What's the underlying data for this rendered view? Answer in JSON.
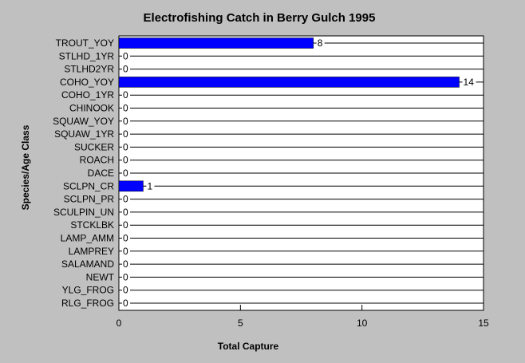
{
  "chart_data": {
    "type": "bar",
    "orientation": "horizontal",
    "title": "Electrofishing Catch in Berry Gulch 1995",
    "xlabel": "Total Capture",
    "ylabel": "Species/Age Class",
    "categories": [
      "TROUT_YOY",
      "STLHD_1YR",
      "STLHD2YR",
      "COHO_YOY",
      "COHO_1YR",
      "CHINOOK",
      "SQUAW_YOY",
      "SQUAW_1YR",
      "SUCKER",
      "ROACH",
      "DACE",
      "SCLPN_CR",
      "SCLPN_PR",
      "SCULPIN_UN",
      "STCKLBK",
      "LAMP_AMM",
      "LAMPREY",
      "SALAMAND",
      "NEWT",
      "YLG_FROG",
      "RLG_FROG"
    ],
    "values": [
      8,
      0,
      0,
      14,
      0,
      0,
      0,
      0,
      0,
      0,
      0,
      1,
      0,
      0,
      0,
      0,
      0,
      0,
      0,
      0,
      0
    ],
    "xlim": [
      0,
      15
    ],
    "xticks": [
      0,
      5,
      10,
      15
    ],
    "grid": "horizontal-lines",
    "legend": "none",
    "colors": {
      "bar": "#0000ff",
      "background": "#c0c0c0",
      "plot_area": "#ffffff"
    }
  }
}
